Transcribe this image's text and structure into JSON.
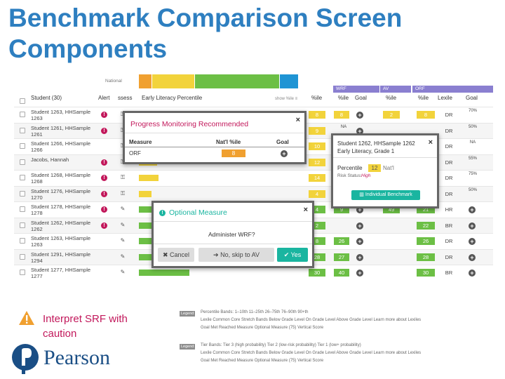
{
  "slide_title": "Benchmark Comparison Screen Components",
  "caution_text": "Interpret SRF with caution",
  "logo_text": "Pearson",
  "national_label": "National",
  "columns": {
    "student": "Student (30)",
    "alert": "Alert",
    "assess": "ssess",
    "early_literacy": "Early Literacy Percentile",
    "show_pct": "show %ile ≡",
    "pct": "%ile",
    "goal": "Goal",
    "lexile": "Lexile"
  },
  "groups": {
    "wrf": "WRF",
    "av": "AV",
    "orf": "ORF"
  },
  "students": [
    {
      "name": "Student 1263, HHSample 1263",
      "alert": true
    },
    {
      "name": "Student 1261, HHSample 1261",
      "alert": true
    },
    {
      "name": "Student 1266, HHSample 1266",
      "alert": false
    },
    {
      "name": "Jacobs, Hannah",
      "alert": true
    },
    {
      "name": "Student 1268, HHSample 1268",
      "alert": true
    },
    {
      "name": "Student 1276, HHSample 1270",
      "alert": true
    },
    {
      "name": "Student 1278, HHSample 1278",
      "alert": true
    },
    {
      "name": "Student 1262, HHSample 1262",
      "alert": true
    },
    {
      "name": "Student 1263, HHSample 1263",
      "alert": false
    },
    {
      "name": "Student 1291, HHSample 1294",
      "alert": false
    },
    {
      "name": "Student 1277, HHSample 1277",
      "alert": false
    }
  ],
  "right_cols": {
    "pct_a": [
      "8",
      "9",
      "10",
      "12",
      "14",
      "4",
      "4",
      "2",
      "8",
      "28",
      "30"
    ],
    "wrf_pct": [
      "8",
      "NA",
      "",
      "",
      "",
      "",
      "9",
      "",
      "26",
      "27",
      "40"
    ],
    "av_pct": [
      "2",
      "",
      "",
      "",
      "",
      "",
      "49",
      "",
      "",
      "",
      ""
    ],
    "orf_pct": [
      "8",
      "",
      "",
      "",
      "",
      "",
      "21",
      "22",
      "26",
      "28",
      "30"
    ],
    "lexile": [
      "DR",
      "DR",
      "DR",
      "DR",
      "DR",
      "DR",
      "HR",
      "BR",
      "DR",
      "DR",
      "BR"
    ],
    "goal_text": [
      "70%",
      "50%",
      "NA",
      "55%",
      "75%",
      "50%",
      "",
      "",
      "",
      "",
      ""
    ]
  },
  "modal_progress": {
    "title": "Progress Monitoring Recommended",
    "measure_h": "Measure",
    "natl_h": "Nat'l %ile",
    "goal_h": "Goal",
    "measure": "ORF",
    "natl_value": "8"
  },
  "modal_student": {
    "title": "Student 1262, HHSample 1262",
    "subtitle": "Early Literacy, Grade 1",
    "percentile_label": "Percentile",
    "percentile_value": "12",
    "natl_label": "Nat'l",
    "risk_label": "Risk Status:",
    "risk_value": "High",
    "button": "Individual Benchmark"
  },
  "modal_optional": {
    "title": "Optional Measure",
    "body": "Administer WRF?",
    "cancel": "Cancel",
    "skip": "No, skip to AV",
    "yes": "Yes"
  },
  "legend1": {
    "tag": "Legend",
    "line1": "Percentile Bands:  1–10th   11–25th   26–75th   76–90th   90+th",
    "line2": "Lexile Common Core Stretch Bands   Below Grade Level   On Grade Level   Above Grade Level   Learn more about Lexiles",
    "line3": "Goal Met   Reached Measure   Optional Measure   (75) Vertical Score"
  },
  "legend2": {
    "tag": "Legend",
    "line1": "Tier Bands:   Tier 3 (high probability)   Tier 2 (low-risk probability)   Tier 1 (low+ probability)",
    "line2": "Lexile Common Core Stretch Bands   Below Grade Level   On Grade Level   Above Grade Level   Learn more about Lexiles",
    "line3": "Goal Met   Reached Measure   Optional Measure   (75) Vertical Score"
  },
  "colors": {
    "title_blue": "#2e7fc0",
    "alert_magenta": "#c2185b",
    "yellow": "#f2d33b",
    "orange": "#f0a030",
    "green": "#6cbf45",
    "teal": "#1ab5a0",
    "blue": "#1f94d4",
    "violet": "#8a7fd0"
  }
}
